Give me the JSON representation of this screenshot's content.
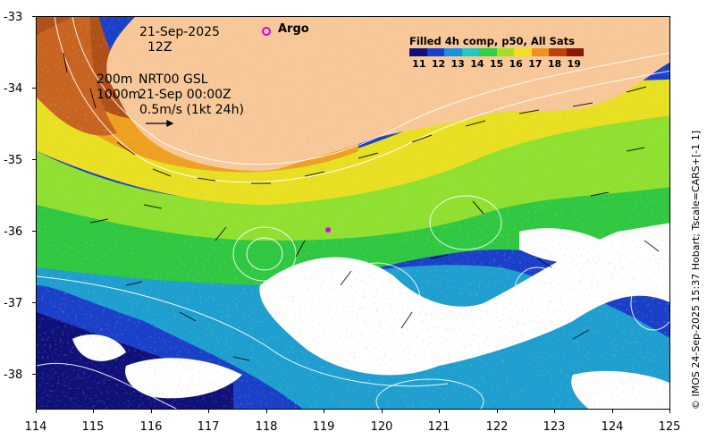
{
  "map": {
    "date": "21-Sep-2025",
    "hour": "12Z",
    "depth_line1": "200m",
    "depth_line2": "1000m",
    "product_line1": "NRT00 GSL",
    "product_line2": "21-Sep 00:00Z",
    "scale_text": "0.5m/s (1kt 24h)",
    "argo_label": "Argo",
    "credit": "© IMOS 24-Sep-2025 15:37 Hobart; Tscale=CARS+[-1 1]",
    "legend_title": "Filled 4h comp, p50, All Sats",
    "legend_ticks": [
      "11",
      "12",
      "13",
      "14",
      "15",
      "16",
      "17",
      "18",
      "19"
    ],
    "legend_colors": [
      "#10107a",
      "#1a3fc8",
      "#1f8ee0",
      "#20c8c0",
      "#30d040",
      "#a0e020",
      "#f0e020",
      "#f09020",
      "#c04010",
      "#8a1a08"
    ],
    "land_color": "#f8c898",
    "axes": {
      "x_ticks": [
        "114",
        "115",
        "116",
        "117",
        "118",
        "119",
        "120",
        "121",
        "122",
        "123",
        "124",
        "125"
      ],
      "y_ticks": [
        "-33",
        "-34",
        "-35",
        "-36",
        "-37",
        "-38"
      ]
    }
  }
}
